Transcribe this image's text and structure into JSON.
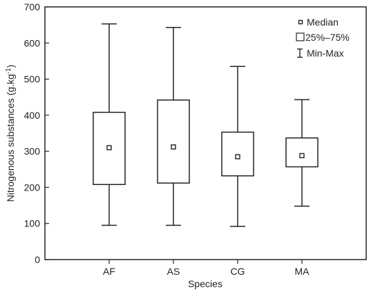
{
  "chart_data": {
    "type": "box",
    "title": "",
    "xlabel": "Species",
    "ylabel_main": "Nitrogenous substances (g.kg",
    "ylabel_sup": "-1",
    "ylabel_close": ")",
    "ylim": [
      0,
      700
    ],
    "yticks": [
      0,
      100,
      200,
      300,
      400,
      500,
      600,
      700
    ],
    "grid": false,
    "legend_position": "top-right",
    "categories": [
      "AF",
      "AS",
      "CG",
      "MA"
    ],
    "boxes": [
      {
        "category": "AF",
        "min": 95,
        "q1": 208,
        "median": 310,
        "q3": 408,
        "max": 653
      },
      {
        "category": "AS",
        "min": 95,
        "q1": 212,
        "median": 312,
        "q3": 442,
        "max": 643
      },
      {
        "category": "CG",
        "min": 92,
        "q1": 232,
        "median": 285,
        "q3": 353,
        "max": 535
      },
      {
        "category": "MA",
        "min": 148,
        "q1": 257,
        "median": 288,
        "q3": 337,
        "max": 443
      }
    ],
    "legend": [
      "Median",
      "25%–75%",
      "Min-Max"
    ]
  }
}
